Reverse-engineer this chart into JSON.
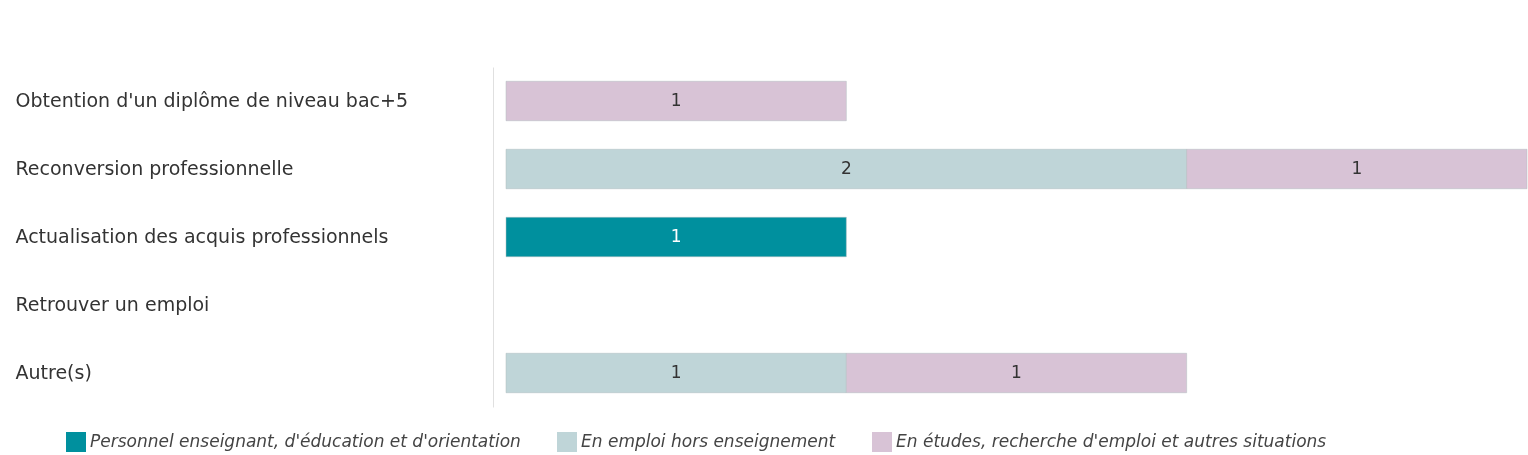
{
  "chart_data": {
    "type": "bar",
    "orientation": "horizontal",
    "stacked": true,
    "data_labels": true,
    "legend": "bottom",
    "xlim": [
      0,
      3
    ],
    "categories": [
      "Obtention d'un diplôme de niveau bac+5",
      "Reconversion professionnelle",
      "Actualisation des acquis professionnels",
      "Retrouver un emploi",
      "Autre(s)"
    ],
    "series": [
      {
        "name": "Personnel enseignant, d'éducation et d'orientation",
        "color": "#00909e",
        "values": [
          null,
          null,
          1,
          null,
          null
        ]
      },
      {
        "name": "En emploi hors enseignement",
        "color": "#bfd5d8",
        "values": [
          null,
          2,
          null,
          null,
          1
        ]
      },
      {
        "name": "En études, recherche d'emploi et autres situations",
        "color": "#d8c3d6",
        "values": [
          1,
          1,
          null,
          null,
          1
        ]
      }
    ]
  }
}
